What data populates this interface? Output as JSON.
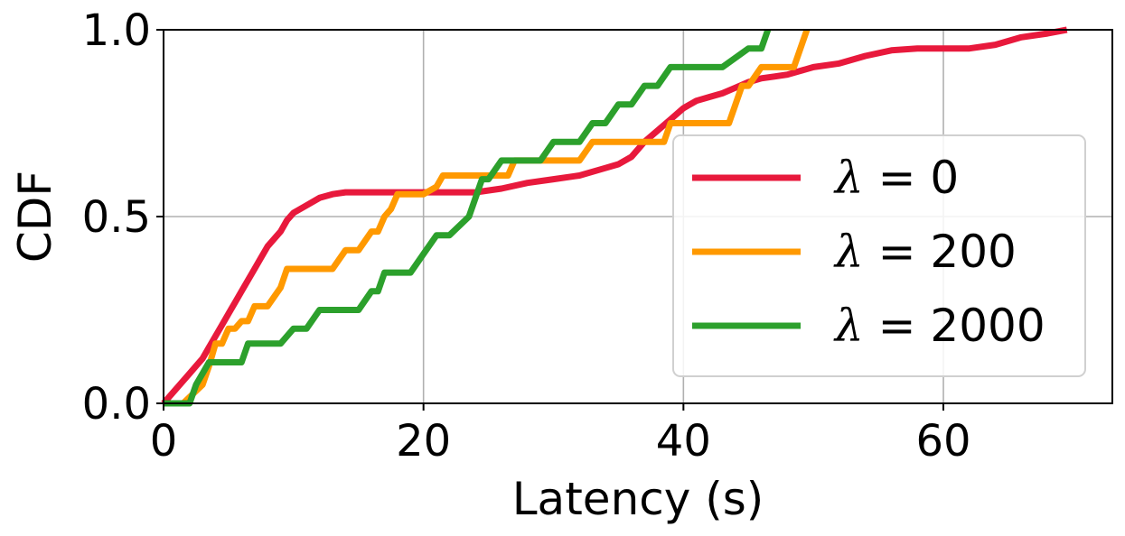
{
  "chart_data": {
    "type": "line",
    "title": "",
    "xlabel": "Latency (s)",
    "ylabel": "CDF",
    "xlim": [
      0,
      73
    ],
    "ylim": [
      0,
      1
    ],
    "xticks": [
      "0",
      "20",
      "40",
      "60"
    ],
    "yticks": [
      "0.0",
      "0.5",
      "1.0"
    ],
    "grid": true,
    "legend_position": "lower-right",
    "series": [
      {
        "name": "λ = 0",
        "lambda": "λ",
        "value": "0",
        "color": "#e8193c",
        "x": [
          0,
          0.5,
          1,
          1.5,
          2,
          2.5,
          3,
          3.5,
          4,
          4.5,
          5,
          5.5,
          6,
          6.5,
          7,
          7.5,
          8,
          8.5,
          9,
          9.5,
          10,
          11,
          12,
          13,
          14,
          15,
          16,
          18,
          20,
          22,
          24,
          26,
          28,
          30,
          32,
          34,
          35,
          36,
          37,
          38,
          39,
          40,
          41,
          42,
          43,
          44,
          45,
          46,
          47,
          48,
          49,
          50,
          52,
          54,
          56,
          58,
          60,
          62,
          64,
          66,
          68,
          69.5
        ],
        "y": [
          0,
          0.02,
          0.04,
          0.06,
          0.08,
          0.1,
          0.12,
          0.15,
          0.18,
          0.21,
          0.24,
          0.27,
          0.3,
          0.33,
          0.36,
          0.39,
          0.42,
          0.44,
          0.46,
          0.49,
          0.51,
          0.53,
          0.55,
          0.56,
          0.565,
          0.565,
          0.565,
          0.565,
          0.565,
          0.565,
          0.565,
          0.575,
          0.59,
          0.6,
          0.61,
          0.63,
          0.64,
          0.66,
          0.7,
          0.73,
          0.76,
          0.79,
          0.81,
          0.82,
          0.83,
          0.845,
          0.86,
          0.87,
          0.875,
          0.88,
          0.89,
          0.9,
          0.91,
          0.93,
          0.945,
          0.95,
          0.95,
          0.95,
          0.96,
          0.98,
          0.99,
          1.0
        ]
      },
      {
        "name": "λ = 200",
        "lambda": "λ",
        "value": "200",
        "color": "#ff9900",
        "x": [
          0,
          1.5,
          3,
          3.5,
          4,
          4.5,
          5,
          5.5,
          6,
          6.5,
          7,
          8,
          9,
          9.5,
          10,
          11,
          12,
          13,
          14,
          14.5,
          15,
          16,
          16.5,
          17,
          17.5,
          18,
          18.5,
          19,
          20,
          21,
          21.5,
          22,
          23,
          24,
          25,
          26,
          26.5,
          27,
          29,
          31,
          32,
          33,
          34,
          35,
          36,
          37,
          38,
          38.5,
          39,
          41,
          42,
          43,
          43.5,
          44,
          44.5,
          45,
          46,
          46.5,
          47,
          47.5,
          48,
          48.5,
          49,
          49.5
        ],
        "y": [
          0,
          0,
          0.05,
          0.1,
          0.16,
          0.16,
          0.2,
          0.2,
          0.22,
          0.22,
          0.26,
          0.26,
          0.31,
          0.36,
          0.36,
          0.36,
          0.36,
          0.36,
          0.41,
          0.41,
          0.41,
          0.46,
          0.46,
          0.5,
          0.52,
          0.56,
          0.56,
          0.56,
          0.56,
          0.58,
          0.61,
          0.61,
          0.61,
          0.61,
          0.61,
          0.61,
          0.61,
          0.65,
          0.65,
          0.65,
          0.65,
          0.7,
          0.7,
          0.7,
          0.7,
          0.7,
          0.7,
          0.7,
          0.75,
          0.75,
          0.75,
          0.75,
          0.75,
          0.8,
          0.85,
          0.85,
          0.9,
          0.9,
          0.9,
          0.9,
          0.9,
          0.9,
          0.95,
          1.0
        ]
      },
      {
        "name": "λ = 2000",
        "lambda": "λ",
        "value": "2000",
        "color": "#2ca02c",
        "x": [
          0,
          2,
          2.5,
          3,
          3.5,
          6,
          6.5,
          7,
          9,
          10,
          11,
          12,
          12.5,
          13,
          15,
          16,
          16.5,
          17,
          18,
          19,
          20,
          21,
          21.5,
          22,
          23.5,
          24,
          24.5,
          25,
          26,
          27,
          29,
          30,
          31,
          32,
          33,
          34,
          35,
          36,
          37,
          38,
          39,
          40,
          41,
          43,
          45,
          46,
          46.5
        ],
        "y": [
          0,
          0,
          0.05,
          0.08,
          0.11,
          0.11,
          0.16,
          0.16,
          0.16,
          0.2,
          0.2,
          0.25,
          0.25,
          0.25,
          0.25,
          0.3,
          0.3,
          0.35,
          0.35,
          0.35,
          0.4,
          0.45,
          0.45,
          0.45,
          0.5,
          0.55,
          0.6,
          0.6,
          0.65,
          0.65,
          0.65,
          0.7,
          0.7,
          0.7,
          0.75,
          0.75,
          0.8,
          0.8,
          0.85,
          0.85,
          0.9,
          0.9,
          0.9,
          0.9,
          0.95,
          0.95,
          1.0
        ]
      }
    ]
  }
}
